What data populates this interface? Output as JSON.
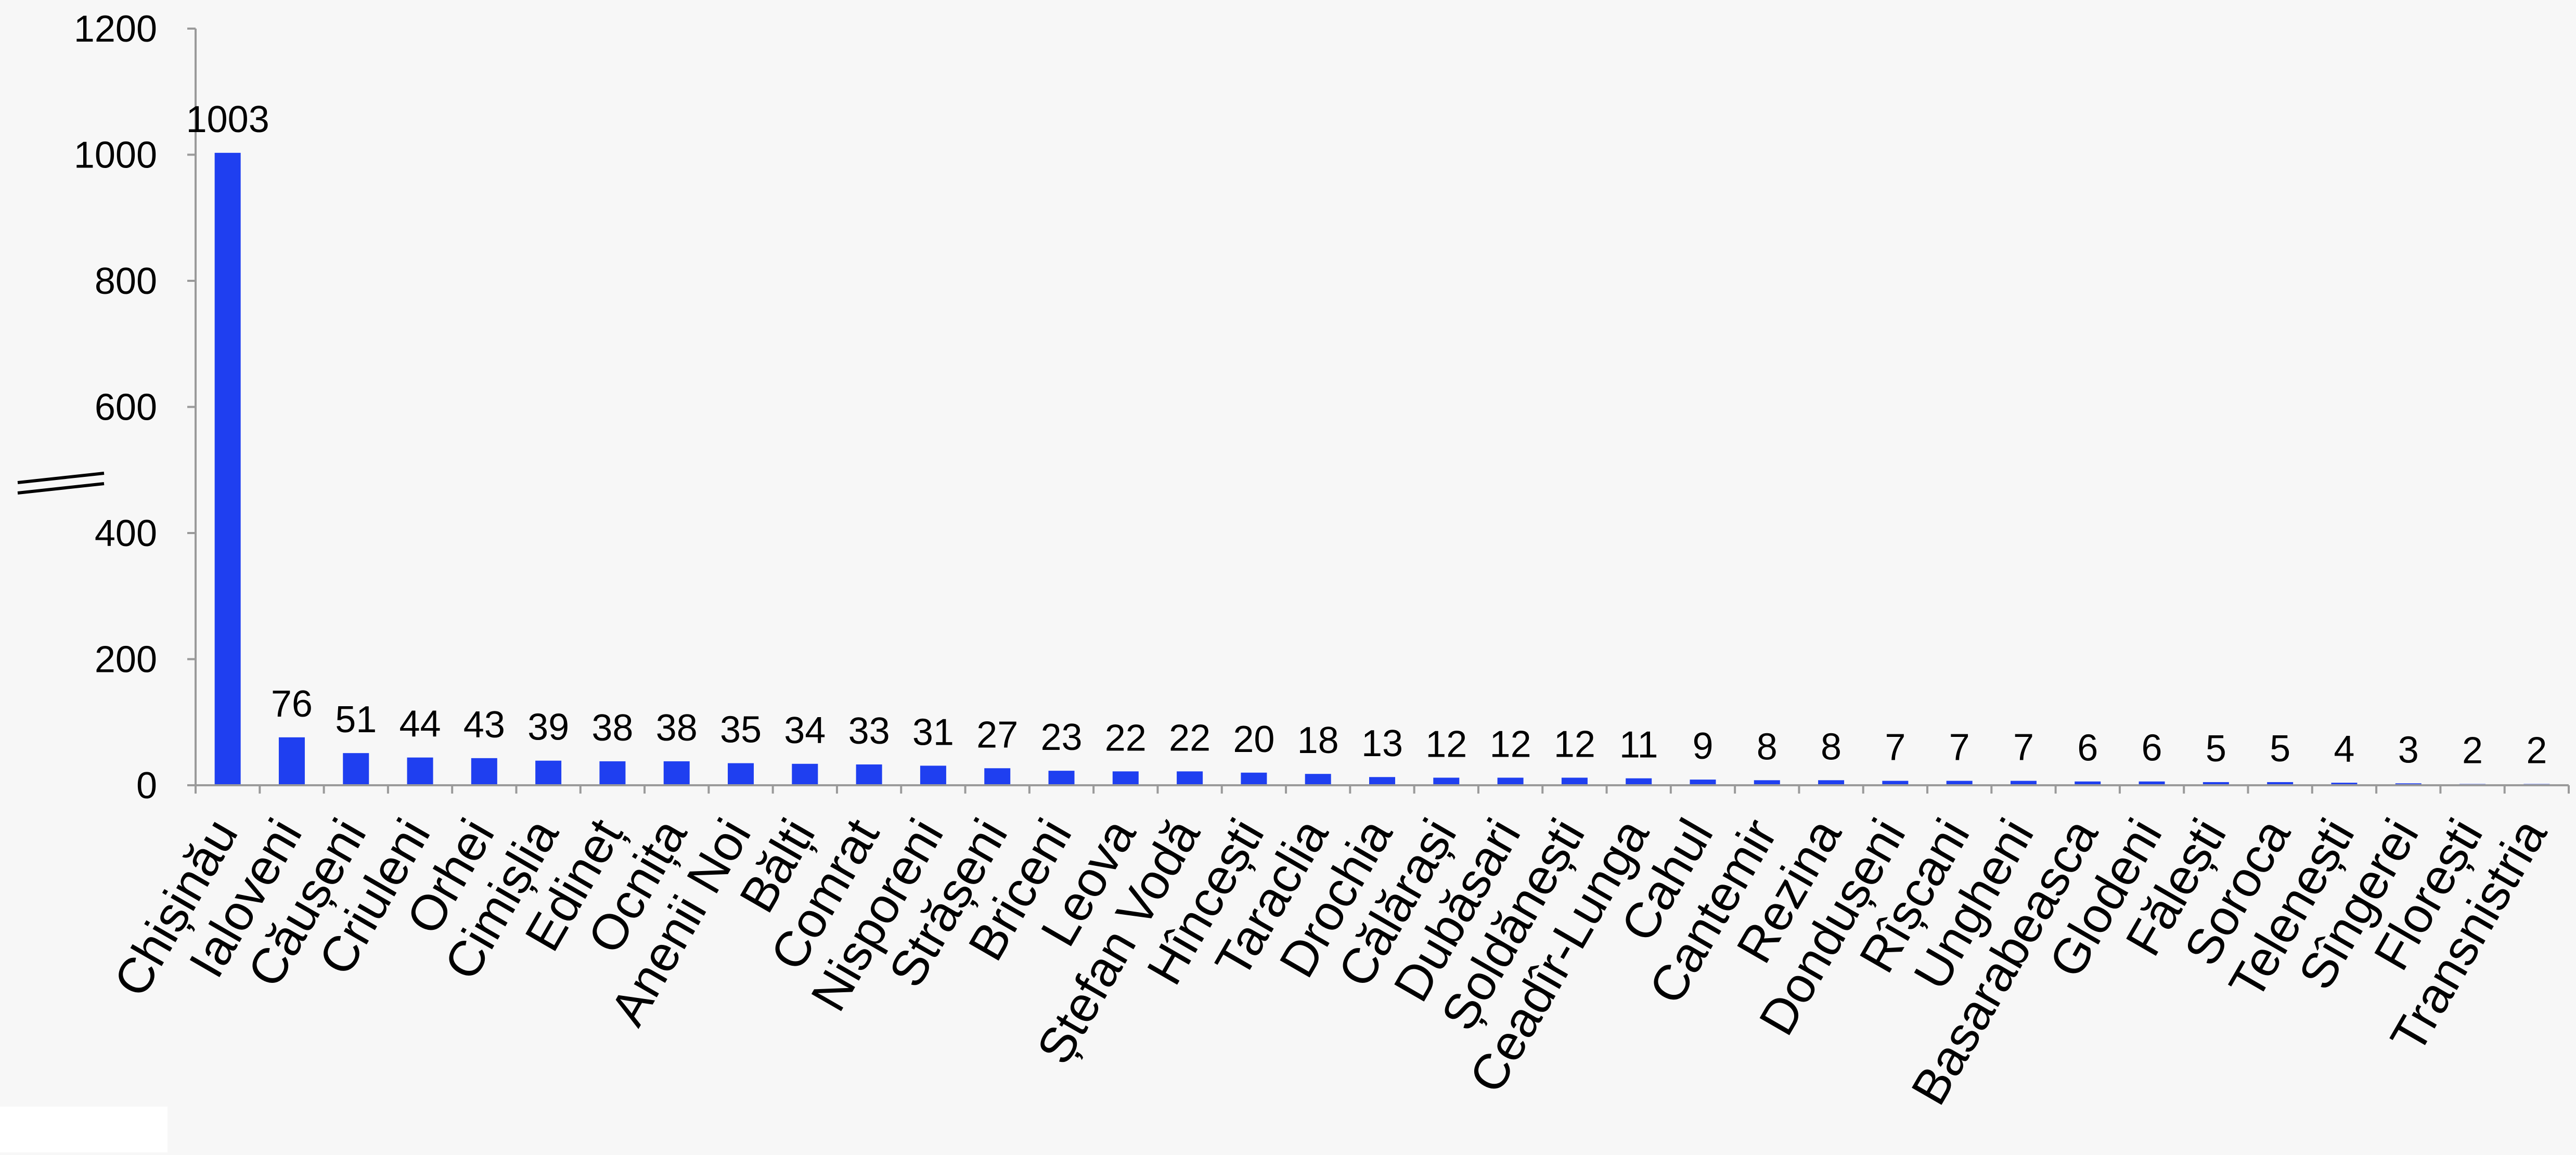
{
  "chart_data": {
    "type": "bar",
    "categories": [
      "Chișinău",
      "Ialoveni",
      "Căușeni",
      "Criuleni",
      "Orhei",
      "Cimișlia",
      "Edineț",
      "Ocnița",
      "Anenii Noi",
      "Bălți",
      "Comrat",
      "Nisporeni",
      "Strășeni",
      "Briceni",
      "Leova",
      "Ștefan Vodă",
      "Hîncești",
      "Taraclia",
      "Drochia",
      "Călărași",
      "Dubăsari",
      "Șoldănești",
      "Ceadîr-Lunga",
      "Cahul",
      "Cantemir",
      "Rezina",
      "Dondușeni",
      "Rîșcani",
      "Ungheni",
      "Basarabeasca",
      "Glodeni",
      "Fălești",
      "Soroca",
      "Telenești",
      "Sîngerei",
      "Florești",
      "Transnistria"
    ],
    "values": [
      1003,
      76,
      51,
      44,
      43,
      39,
      38,
      38,
      35,
      34,
      33,
      31,
      27,
      23,
      22,
      22,
      20,
      18,
      13,
      12,
      12,
      12,
      11,
      9,
      8,
      8,
      7,
      7,
      7,
      6,
      6,
      5,
      5,
      4,
      3,
      2,
      2
    ],
    "data_labels": [
      "1003",
      "76",
      "51",
      "44",
      "43",
      "39",
      "38",
      "38",
      "35",
      "34",
      "33",
      "31",
      "27",
      "23",
      "22",
      "22",
      "20",
      "18",
      "13",
      "12",
      "12",
      "12",
      "11",
      "9",
      "8",
      "8",
      "7",
      "7",
      "7",
      "6",
      "6",
      "5",
      "5",
      "4",
      "3",
      "2",
      "2"
    ],
    "yticks": [
      "0",
      "200",
      "400",
      "600",
      "800",
      "1000",
      "1200"
    ],
    "ylim": [
      0,
      1200
    ],
    "ylabel": "",
    "xlabel": "",
    "title": "",
    "legend": "none",
    "grid": false,
    "bar_color": "#1f3ff0"
  }
}
